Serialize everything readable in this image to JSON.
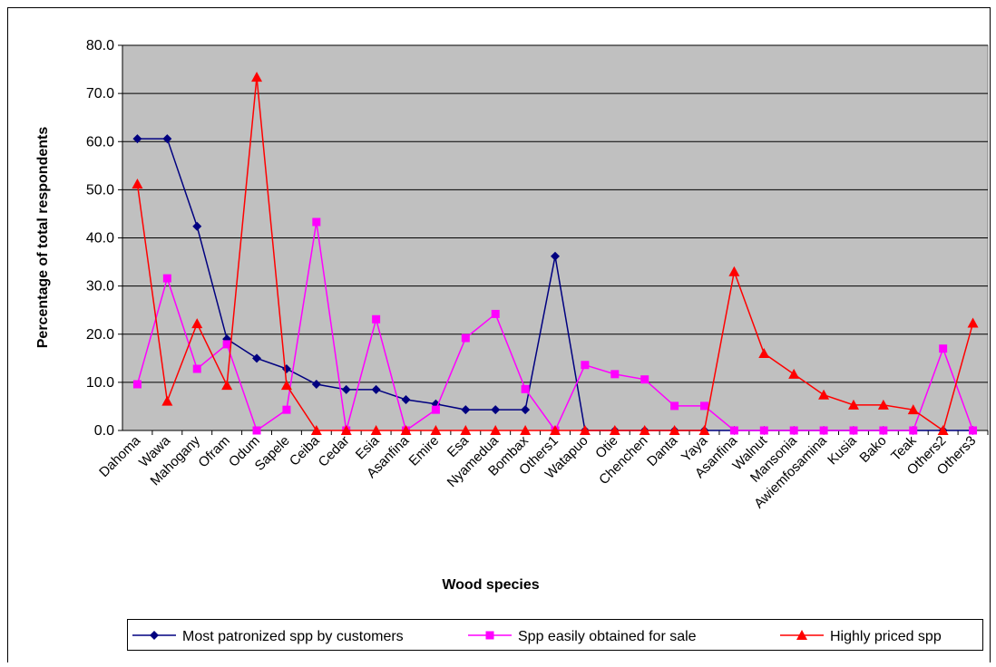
{
  "chart_data": {
    "type": "line",
    "x_label": "Wood species",
    "y_label": "Percentage of total respondents",
    "categories": [
      "Dahoma",
      "Wawa",
      "Mahogany",
      "Ofram",
      "Odum",
      "Sapele",
      "Ceiba",
      "Cedar",
      "Esia",
      "Asanfina",
      "Emire",
      "Esa",
      "Nyamedua",
      "Bombax",
      "Others1",
      "Watapuo",
      "Otie",
      "Chenchen",
      "Danta",
      "Yaya",
      "Asanfina",
      "Walnut",
      "Mansonia",
      "Awiemfosamina",
      "Kusia",
      "Bako",
      "Teak",
      "Others2",
      "Others3"
    ],
    "series": [
      {
        "name": "Most patronized spp by customers",
        "color": "#000080",
        "marker": "diamond",
        "values": [
          60.6,
          60.6,
          42.4,
          19.0,
          15.0,
          12.8,
          9.6,
          8.5,
          8.5,
          6.4,
          5.5,
          4.3,
          4.3,
          4.3,
          36.2,
          0,
          0,
          0,
          0,
          0,
          0,
          0,
          0,
          0,
          0,
          0,
          0,
          0,
          0
        ]
      },
      {
        "name": "Spp easily obtained for sale",
        "color": "#ff00ff",
        "marker": "square",
        "values": [
          9.6,
          31.6,
          12.8,
          17.9,
          0,
          4.3,
          43.3,
          0,
          23.1,
          0,
          4.3,
          19.2,
          24.2,
          8.6,
          0,
          13.6,
          11.7,
          10.6,
          5.1,
          5.1,
          0,
          0,
          0,
          0,
          0,
          0,
          0,
          17.0,
          0
        ]
      },
      {
        "name": "Highly priced spp",
        "color": "#ff0000",
        "marker": "triangle",
        "values": [
          51.2,
          6.1,
          22.2,
          9.4,
          73.4,
          9.4,
          0,
          0,
          0,
          0,
          0,
          0,
          0,
          0,
          0,
          0,
          0,
          0,
          0,
          0,
          33.0,
          16.0,
          11.7,
          7.4,
          5.3,
          5.3,
          4.3,
          0,
          22.3
        ]
      }
    ],
    "ylim": [
      0,
      80
    ],
    "yticks": [
      {
        "value": 0,
        "label": "0.0"
      },
      {
        "value": 10,
        "label": "10.0"
      },
      {
        "value": 20,
        "label": "20.0"
      },
      {
        "value": 30,
        "label": "30.0"
      },
      {
        "value": 40,
        "label": "40.0"
      },
      {
        "value": 50,
        "label": "50.0"
      },
      {
        "value": 60,
        "label": "60.0"
      },
      {
        "value": 70,
        "label": "70.0"
      },
      {
        "value": 80,
        "label": "80.0"
      }
    ],
    "grid": true,
    "plot_background": "#c0c0c0",
    "legend_position": "bottom"
  }
}
